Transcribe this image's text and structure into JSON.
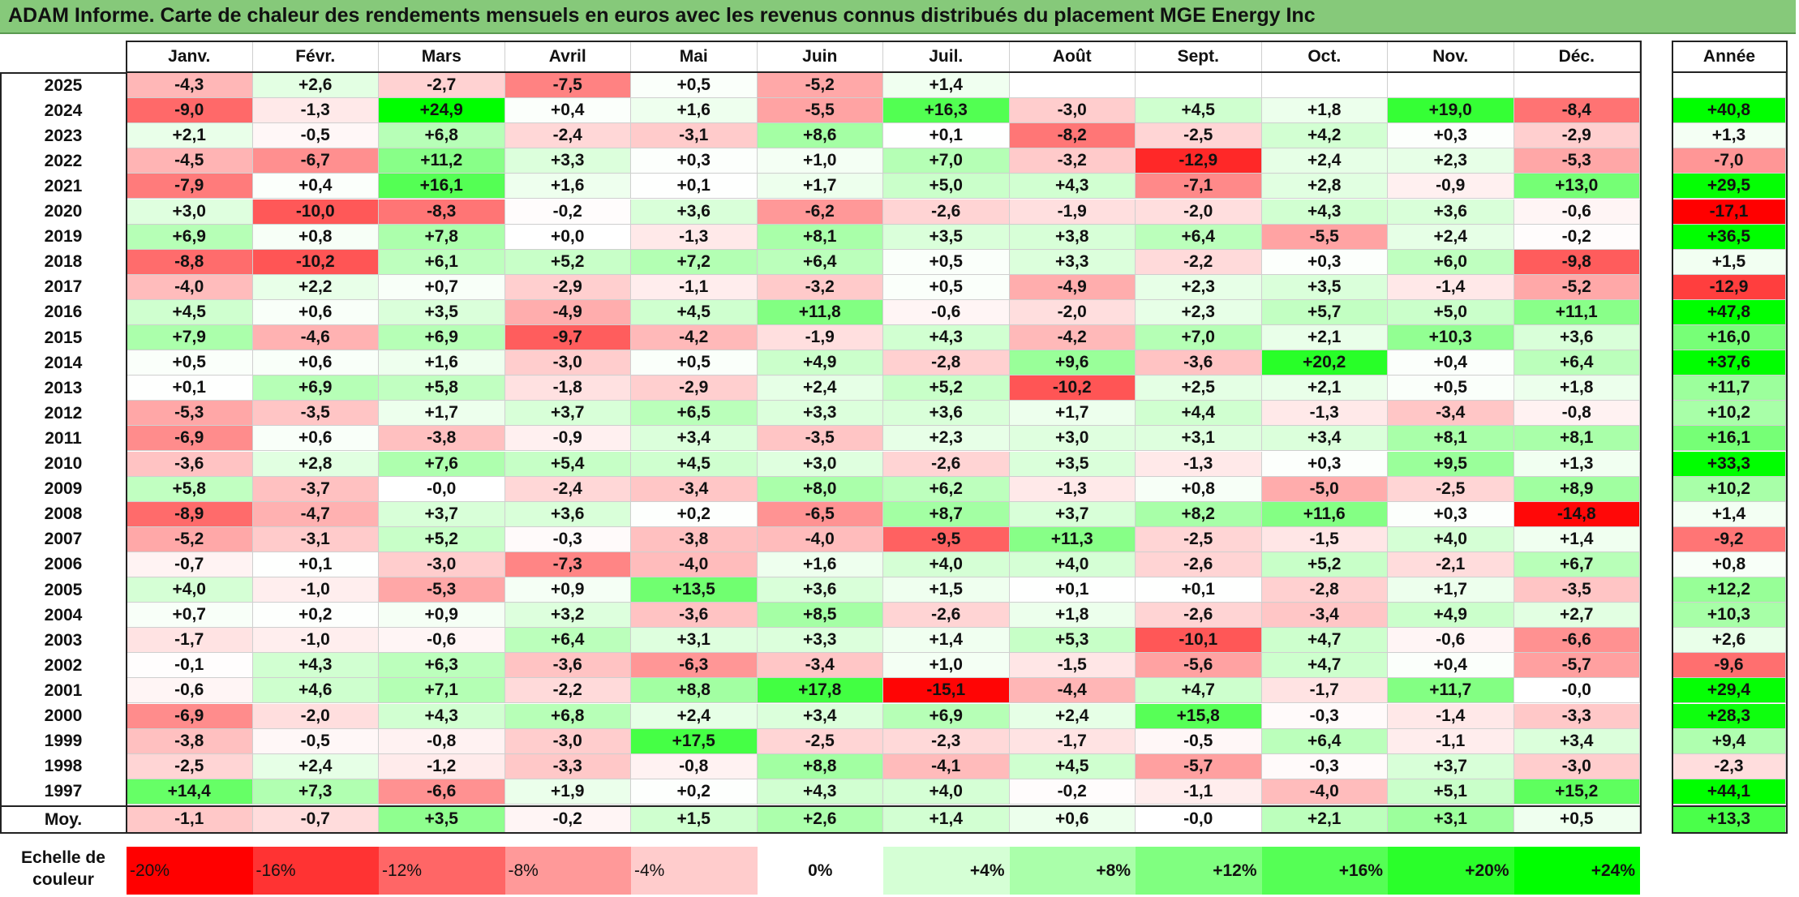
{
  "title": "ADAM Informe. Carte de chaleur des rendements mensuels en euros avec les revenus connus distribués du placement MGE Energy Inc",
  "colors": {
    "title_bg": "#86c97a",
    "negative_max": "#ff0000",
    "neutral": "#ffffff",
    "positive_max": "#00ff00"
  },
  "chart_data": {
    "type": "heatmap",
    "title": "ADAM Informe. Carte de chaleur des rendements mensuels en euros avec les revenus connus distribués du placement MGE Energy Inc",
    "months": [
      "Janv.",
      "Févr.",
      "Mars",
      "Avril",
      "Mai",
      "Juin",
      "Juil.",
      "Août",
      "Sept.",
      "Oct.",
      "Nov.",
      "Déc."
    ],
    "year_header": "Année",
    "rows": [
      {
        "label": "2025",
        "values": [
          "-4,3",
          "+2,6",
          "-2,7",
          "-7,5",
          "+0,5",
          "-5,2",
          "+1,4",
          "",
          "",
          "",
          "",
          ""
        ],
        "annual": ""
      },
      {
        "label": "2024",
        "values": [
          "-9,0",
          "-1,3",
          "+24,9",
          "+0,4",
          "+1,6",
          "-5,5",
          "+16,3",
          "-3,0",
          "+4,5",
          "+1,8",
          "+19,0",
          "-8,4"
        ],
        "annual": "+40,8"
      },
      {
        "label": "2023",
        "values": [
          "+2,1",
          "-0,5",
          "+6,8",
          "-2,4",
          "-3,1",
          "+8,6",
          "+0,1",
          "-8,2",
          "-2,5",
          "+4,2",
          "+0,3",
          "-2,9"
        ],
        "annual": "+1,3"
      },
      {
        "label": "2022",
        "values": [
          "-4,5",
          "-6,7",
          "+11,2",
          "+3,3",
          "+0,3",
          "+1,0",
          "+7,0",
          "-3,2",
          "-12,9",
          "+2,4",
          "+2,3",
          "-5,3"
        ],
        "annual": "-7,0"
      },
      {
        "label": "2021",
        "values": [
          "-7,9",
          "+0,4",
          "+16,1",
          "+1,6",
          "+0,1",
          "+1,7",
          "+5,0",
          "+4,3",
          "-7,1",
          "+2,8",
          "-0,9",
          "+13,0"
        ],
        "annual": "+29,5"
      },
      {
        "label": "2020",
        "values": [
          "+3,0",
          "-10,0",
          "-8,3",
          "-0,2",
          "+3,6",
          "-6,2",
          "-2,6",
          "-1,9",
          "-2,0",
          "+4,3",
          "+3,6",
          "-0,6"
        ],
        "annual": "-17,1"
      },
      {
        "label": "2019",
        "values": [
          "+6,9",
          "+0,8",
          "+7,8",
          "+0,0",
          "-1,3",
          "+8,1",
          "+3,5",
          "+3,8",
          "+6,4",
          "-5,5",
          "+2,4",
          "-0,2"
        ],
        "annual": "+36,5"
      },
      {
        "label": "2018",
        "values": [
          "-8,8",
          "-10,2",
          "+6,1",
          "+5,2",
          "+7,2",
          "+6,4",
          "+0,5",
          "+3,3",
          "-2,2",
          "+0,3",
          "+6,0",
          "-9,8"
        ],
        "annual": "+1,5"
      },
      {
        "label": "2017",
        "values": [
          "-4,0",
          "+2,2",
          "+0,7",
          "-2,9",
          "-1,1",
          "-3,2",
          "+0,5",
          "-4,9",
          "+2,3",
          "+3,5",
          "-1,4",
          "-5,2"
        ],
        "annual": "-12,9"
      },
      {
        "label": "2016",
        "values": [
          "+4,5",
          "+0,6",
          "+3,5",
          "-4,9",
          "+4,5",
          "+11,8",
          "-0,6",
          "-2,0",
          "+2,3",
          "+5,7",
          "+5,0",
          "+11,1"
        ],
        "annual": "+47,8"
      },
      {
        "label": "2015",
        "values": [
          "+7,9",
          "-4,6",
          "+6,9",
          "-9,7",
          "-4,2",
          "-1,9",
          "+4,3",
          "-4,2",
          "+7,0",
          "+2,1",
          "+10,3",
          "+3,6"
        ],
        "annual": "+16,0"
      },
      {
        "label": "2014",
        "values": [
          "+0,5",
          "+0,6",
          "+1,6",
          "-3,0",
          "+0,5",
          "+4,9",
          "-2,8",
          "+9,6",
          "-3,6",
          "+20,2",
          "+0,4",
          "+6,4"
        ],
        "annual": "+37,6"
      },
      {
        "label": "2013",
        "values": [
          "+0,1",
          "+6,9",
          "+5,8",
          "-1,8",
          "-2,9",
          "+2,4",
          "+5,2",
          "-10,2",
          "+2,5",
          "+2,1",
          "+0,5",
          "+1,8"
        ],
        "annual": "+11,7"
      },
      {
        "label": "2012",
        "values": [
          "-5,3",
          "-3,5",
          "+1,7",
          "+3,7",
          "+6,5",
          "+3,3",
          "+3,6",
          "+1,7",
          "+4,4",
          "-1,3",
          "-3,4",
          "-0,8"
        ],
        "annual": "+10,2"
      },
      {
        "label": "2011",
        "values": [
          "-6,9",
          "+0,6",
          "-3,8",
          "-0,9",
          "+3,4",
          "-3,5",
          "+2,3",
          "+3,0",
          "+3,1",
          "+3,4",
          "+8,1",
          "+8,1"
        ],
        "annual": "+16,1"
      },
      {
        "label": "2010",
        "values": [
          "-3,6",
          "+2,8",
          "+7,6",
          "+5,4",
          "+4,5",
          "+3,0",
          "-2,6",
          "+3,5",
          "-1,3",
          "+0,3",
          "+9,5",
          "+1,3"
        ],
        "annual": "+33,3"
      },
      {
        "label": "2009",
        "values": [
          "+5,8",
          "-3,7",
          "-0,0",
          "-2,4",
          "-3,4",
          "+8,0",
          "+6,2",
          "-1,3",
          "+0,8",
          "-5,0",
          "-2,5",
          "+8,9"
        ],
        "annual": "+10,2"
      },
      {
        "label": "2008",
        "values": [
          "-8,9",
          "-4,7",
          "+3,7",
          "+3,6",
          "+0,2",
          "-6,5",
          "+8,7",
          "+3,7",
          "+8,2",
          "+11,6",
          "+0,3",
          "-14,8"
        ],
        "annual": "+1,4"
      },
      {
        "label": "2007",
        "values": [
          "-5,2",
          "-3,1",
          "+5,2",
          "-0,3",
          "-3,8",
          "-4,0",
          "-9,5",
          "+11,3",
          "-2,5",
          "-1,5",
          "+4,0",
          "+1,4"
        ],
        "annual": "-9,2"
      },
      {
        "label": "2006",
        "values": [
          "-0,7",
          "+0,1",
          "-3,0",
          "-7,3",
          "-4,0",
          "+1,6",
          "+4,0",
          "+4,0",
          "-2,6",
          "+5,2",
          "-2,1",
          "+6,7"
        ],
        "annual": "+0,8"
      },
      {
        "label": "2005",
        "values": [
          "+4,0",
          "-1,0",
          "-5,3",
          "+0,9",
          "+13,5",
          "+3,6",
          "+1,5",
          "+0,1",
          "+0,1",
          "-2,8",
          "+1,7",
          "-3,5"
        ],
        "annual": "+12,2"
      },
      {
        "label": "2004",
        "values": [
          "+0,7",
          "+0,2",
          "+0,9",
          "+3,2",
          "-3,6",
          "+8,5",
          "-2,6",
          "+1,8",
          "-2,6",
          "-3,4",
          "+4,9",
          "+2,7"
        ],
        "annual": "+10,3"
      },
      {
        "label": "2003",
        "values": [
          "-1,7",
          "-1,0",
          "-0,6",
          "+6,4",
          "+3,1",
          "+3,3",
          "+1,4",
          "+5,3",
          "-10,1",
          "+4,7",
          "-0,6",
          "-6,6"
        ],
        "annual": "+2,6"
      },
      {
        "label": "2002",
        "values": [
          "-0,1",
          "+4,3",
          "+6,3",
          "-3,6",
          "-6,3",
          "-3,4",
          "+1,0",
          "-1,5",
          "-5,6",
          "+4,7",
          "+0,4",
          "-5,7"
        ],
        "annual": "-9,6"
      },
      {
        "label": "2001",
        "values": [
          "-0,6",
          "+4,6",
          "+7,1",
          "-2,2",
          "+8,8",
          "+17,8",
          "-15,1",
          "-4,4",
          "+4,7",
          "-1,7",
          "+11,7",
          "-0,0"
        ],
        "annual": "+29,4"
      },
      {
        "label": "2000",
        "values": [
          "-6,9",
          "-2,0",
          "+4,3",
          "+6,8",
          "+2,4",
          "+3,4",
          "+6,9",
          "+2,4",
          "+15,8",
          "-0,3",
          "-1,4",
          "-3,3"
        ],
        "annual": "+28,3"
      },
      {
        "label": "1999",
        "values": [
          "-3,8",
          "-0,5",
          "-0,8",
          "-3,0",
          "+17,5",
          "-2,5",
          "-2,3",
          "-1,7",
          "-0,5",
          "+6,4",
          "-1,1",
          "+3,4"
        ],
        "annual": "+9,4"
      },
      {
        "label": "1998",
        "values": [
          "-2,5",
          "+2,4",
          "-1,2",
          "-3,3",
          "-0,8",
          "+8,8",
          "-4,1",
          "+4,5",
          "-5,7",
          "-0,3",
          "+3,7",
          "-3,0"
        ],
        "annual": "-2,3"
      },
      {
        "label": "1997",
        "values": [
          "+14,4",
          "+7,3",
          "-6,6",
          "+1,9",
          "+0,2",
          "+4,3",
          "+4,0",
          "-0,2",
          "-1,1",
          "-4,0",
          "+5,1",
          "+15,2"
        ],
        "annual": "+44,1"
      }
    ],
    "average": {
      "label": "Moy.",
      "values": [
        "-1,1",
        "-0,7",
        "+3,5",
        "-0,2",
        "+1,5",
        "+2,6",
        "+1,4",
        "+0,6",
        "-0,0",
        "+2,1",
        "+3,1",
        "+0,5"
      ],
      "annual": "+13,3"
    },
    "scale": {
      "label_line1": "Echelle de",
      "label_line2": "couleur",
      "labels": [
        "-20%",
        "-16%",
        "-12%",
        "-8%",
        "-4%",
        "0%",
        "+4%",
        "+8%",
        "+12%",
        "+16%",
        "+20%",
        "+24%"
      ],
      "values": [
        -20,
        -16,
        -12,
        -8,
        -4,
        0,
        4,
        8,
        12,
        16,
        20,
        24
      ]
    }
  }
}
